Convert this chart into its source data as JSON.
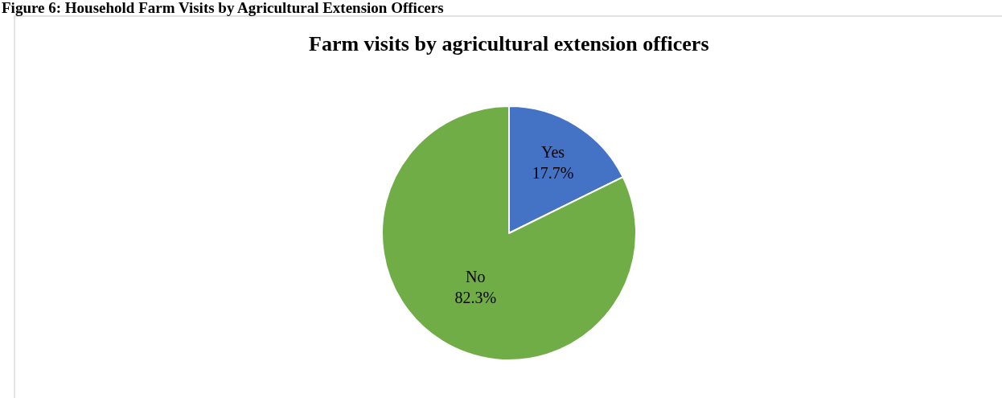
{
  "chart_data": {
    "type": "pie",
    "title": "Farm visits by agricultural extension officers",
    "annotations": [
      "Figure 6: Household Farm Visits by Agricultural Extension Officers"
    ],
    "categories": [
      "Yes",
      "No"
    ],
    "values": [
      17.7,
      82.3
    ],
    "value_labels": [
      "17.7%",
      "82.3%"
    ],
    "colors": [
      "#4472c4",
      "#70ad47"
    ],
    "legend": false
  }
}
